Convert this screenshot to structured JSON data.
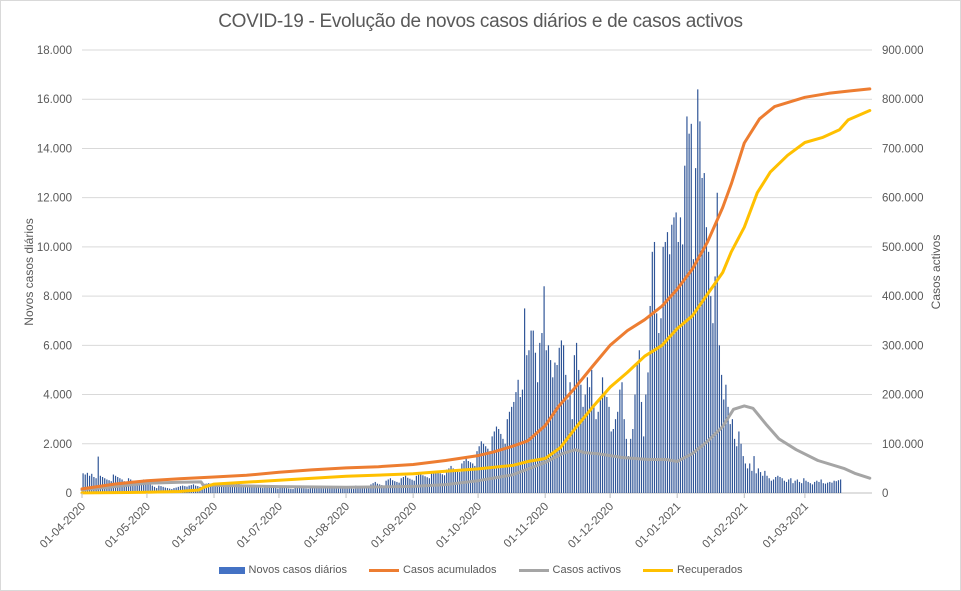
{
  "chart_data": {
    "type": "bar",
    "title": "COVID-19 - Evolução de novos casos diários e de casos activos",
    "xlabel": "",
    "ylabel": "Novos casos diários",
    "y2label": "Casos activos",
    "ylim": [
      0,
      18000
    ],
    "y2lim": [
      0,
      900000
    ],
    "yticks": [
      "0",
      "2.000",
      "4.000",
      "6.000",
      "8.000",
      "10.000",
      "12.000",
      "14.000",
      "16.000",
      "18.000"
    ],
    "y2ticks": [
      "0",
      "100.000",
      "200.000",
      "300.000",
      "400.000",
      "500.000",
      "600.000",
      "700.000",
      "800.000",
      "900.000"
    ],
    "x_range": [
      "2020-04-01",
      "2021-03-31"
    ],
    "xticks": [
      "01-04-2020",
      "01-05-2020",
      "01-06-2020",
      "01-07-2020",
      "01-08-2020",
      "01-09-2020",
      "01-10-2020",
      "01-11-2020",
      "01-12-2020",
      "01-01-2021",
      "01-02-2021",
      "01-03-2021"
    ],
    "xtick_days": [
      0,
      30,
      61,
      91,
      122,
      153,
      183,
      214,
      244,
      275,
      306,
      334
    ],
    "grid": true,
    "legend_position": "bottom",
    "colors": {
      "bars": "#4472c4",
      "bars_dark": "#2f5597",
      "acumulados": "#ed7d31",
      "activos": "#a5a5a5",
      "recuperados": "#ffc000",
      "grid": "#d9d9d9",
      "text": "#595959"
    },
    "series": [
      {
        "name": "Novos casos diários",
        "type": "bar",
        "axis": "left",
        "daily_values_by_week": [
          [
            800,
            750,
            820,
            700,
            780,
            650,
            600
          ],
          [
            1480,
            700,
            650,
            600,
            550,
            520,
            480
          ],
          [
            750,
            700,
            650,
            600,
            550,
            480,
            420
          ],
          [
            600,
            550,
            500,
            450,
            400,
            380,
            350
          ],
          [
            550,
            500,
            450,
            350,
            300,
            250,
            200
          ],
          [
            300,
            280,
            250,
            220,
            200,
            180,
            160
          ],
          [
            200,
            220,
            250,
            280,
            300,
            280,
            260
          ],
          [
            300,
            320,
            350,
            300,
            280,
            250,
            230
          ],
          [
            300,
            380,
            400,
            380,
            350,
            320,
            300
          ],
          [
            350,
            330,
            300,
            320,
            350,
            300,
            280
          ],
          [
            350,
            380,
            400,
            350,
            300,
            280,
            260
          ],
          [
            320,
            300,
            280,
            260,
            240,
            220,
            200
          ],
          [
            300,
            280,
            260,
            240,
            220,
            200,
            180
          ],
          [
            250,
            230,
            220,
            200,
            180,
            170,
            160
          ],
          [
            260,
            240,
            220,
            200,
            190,
            180,
            170
          ],
          [
            200,
            230,
            250,
            220,
            200,
            190,
            180
          ],
          [
            280,
            260,
            240,
            220,
            200,
            190,
            180
          ],
          [
            250,
            230,
            220,
            200,
            190,
            180,
            170
          ],
          [
            300,
            280,
            260,
            240,
            220,
            200,
            190
          ],
          [
            350,
            400,
            450,
            380,
            350,
            320,
            300
          ],
          [
            500,
            550,
            600,
            520,
            480,
            450,
            420
          ],
          [
            600,
            650,
            700,
            620,
            580,
            540,
            500
          ],
          [
            700,
            750,
            800,
            720,
            680,
            640,
            600
          ],
          [
            800,
            850,
            900,
            850,
            800,
            760,
            720
          ],
          [
            950,
            1000,
            1100,
            1000,
            950,
            900,
            850
          ],
          [
            1200,
            1300,
            1400,
            1300,
            1250,
            1200,
            1100
          ],
          [
            1700,
            1900,
            2100,
            2000,
            1900,
            1800,
            1700
          ],
          [
            2300,
            2500,
            2700,
            2600,
            2400,
            2200,
            2000
          ],
          [
            3000,
            3300,
            3500,
            3700,
            4100,
            4600,
            3900
          ],
          [
            4200,
            7500,
            5600,
            5800,
            6600,
            6600,
            5700
          ],
          [
            4500,
            6100,
            6500,
            8400,
            5800,
            6000,
            5400
          ],
          [
            4700,
            5300,
            5200,
            5900,
            6200,
            6000,
            4800
          ],
          [
            3800,
            4500,
            3000,
            5600,
            6100,
            5000,
            4400
          ],
          [
            3500,
            4000,
            4700,
            4300,
            5000,
            3500,
            3000
          ],
          [
            3300,
            3900,
            4700,
            4100,
            3900,
            3500,
            2500
          ],
          [
            2600,
            3000,
            3300,
            4200,
            4500,
            3000,
            2200
          ],
          [
            1500,
            2200,
            2600,
            4000,
            5200,
            5800,
            3700
          ],
          [
            2300,
            4000,
            4900,
            7600,
            9800,
            10200,
            7300
          ],
          [
            6500,
            7100,
            10000,
            10200,
            10600,
            9700,
            10900
          ],
          [
            11200,
            11400,
            10200,
            11200,
            10100,
            13300,
            15300
          ],
          [
            14600,
            15000,
            9500,
            13200,
            16400,
            15100,
            12800
          ],
          [
            13000,
            10800,
            9800,
            8000,
            6900,
            8800,
            12200
          ],
          [
            6000,
            4800,
            3800,
            4400,
            3500,
            2800,
            3000
          ],
          [
            2200,
            1900,
            2500,
            2000,
            1500,
            1200,
            1000
          ],
          [
            1200,
            900,
            1500,
            800,
            1000,
            850,
            700
          ],
          [
            900,
            700,
            600,
            500,
            550,
            650,
            700
          ],
          [
            650,
            600,
            500,
            450,
            550,
            600,
            400
          ],
          [
            500,
            550,
            450,
            400,
            600,
            500,
            450
          ],
          [
            400,
            350,
            450,
            500,
            450,
            550,
            400
          ],
          [
            380,
            420,
            450,
            420,
            500,
            480,
            520
          ],
          [
            550
          ]
        ]
      },
      {
        "name": "Casos acumulados",
        "type": "line",
        "axis": "right",
        "points": [
          [
            0,
            8250
          ],
          [
            15,
            18000
          ],
          [
            30,
            25000
          ],
          [
            45,
            29000
          ],
          [
            61,
            32500
          ],
          [
            76,
            36000
          ],
          [
            91,
            42100
          ],
          [
            106,
            47000
          ],
          [
            122,
            50900
          ],
          [
            137,
            53500
          ],
          [
            153,
            58000
          ],
          [
            168,
            66000
          ],
          [
            183,
            76000
          ],
          [
            190,
            83000
          ],
          [
            199,
            95000
          ],
          [
            206,
            106000
          ],
          [
            214,
            137000
          ],
          [
            220,
            175000
          ],
          [
            228,
            215000
          ],
          [
            236,
            258000
          ],
          [
            244,
            300000
          ],
          [
            252,
            330000
          ],
          [
            260,
            352000
          ],
          [
            268,
            380000
          ],
          [
            275,
            414000
          ],
          [
            282,
            455000
          ],
          [
            289,
            510000
          ],
          [
            296,
            580000
          ],
          [
            300,
            628000
          ],
          [
            306,
            711000
          ],
          [
            313,
            760000
          ],
          [
            320,
            785000
          ],
          [
            334,
            804000
          ],
          [
            345,
            812000
          ],
          [
            355,
            817000
          ],
          [
            364,
            821000
          ]
        ]
      },
      {
        "name": "Casos activos",
        "type": "line",
        "axis": "right",
        "points": [
          [
            0,
            6500
          ],
          [
            15,
            13000
          ],
          [
            30,
            20000
          ],
          [
            45,
            22000
          ],
          [
            55,
            22500
          ],
          [
            56,
            16000
          ],
          [
            61,
            15500
          ],
          [
            91,
            13000
          ],
          [
            122,
            11500
          ],
          [
            153,
            13500
          ],
          [
            168,
            17000
          ],
          [
            183,
            25000
          ],
          [
            199,
            37000
          ],
          [
            214,
            62000
          ],
          [
            222,
            80000
          ],
          [
            228,
            88000
          ],
          [
            232,
            82000
          ],
          [
            238,
            80000
          ],
          [
            250,
            72000
          ],
          [
            262,
            68000
          ],
          [
            270,
            68000
          ],
          [
            275,
            64000
          ],
          [
            282,
            80000
          ],
          [
            289,
            105000
          ],
          [
            296,
            135000
          ],
          [
            301,
            170000
          ],
          [
            306,
            177000
          ],
          [
            310,
            172000
          ],
          [
            316,
            140000
          ],
          [
            322,
            110000
          ],
          [
            330,
            88000
          ],
          [
            340,
            66000
          ],
          [
            352,
            50000
          ],
          [
            357,
            40000
          ],
          [
            364,
            30000
          ]
        ]
      },
      {
        "name": "Recuperados",
        "type": "line",
        "axis": "right",
        "points": [
          [
            0,
            150
          ],
          [
            30,
            1500
          ],
          [
            45,
            3000
          ],
          [
            54,
            6000
          ],
          [
            56,
            11000
          ],
          [
            61,
            18000
          ],
          [
            91,
            26000
          ],
          [
            122,
            34000
          ],
          [
            153,
            39000
          ],
          [
            168,
            44000
          ],
          [
            183,
            49000
          ],
          [
            199,
            56000
          ],
          [
            206,
            64000
          ],
          [
            214,
            70000
          ],
          [
            221,
            92000
          ],
          [
            228,
            132000
          ],
          [
            236,
            175000
          ],
          [
            244,
            215000
          ],
          [
            252,
            245000
          ],
          [
            260,
            278000
          ],
          [
            268,
            300000
          ],
          [
            275,
            334000
          ],
          [
            282,
            360000
          ],
          [
            289,
            404000
          ],
          [
            296,
            448000
          ],
          [
            300,
            490000
          ],
          [
            306,
            540000
          ],
          [
            312,
            610000
          ],
          [
            318,
            652000
          ],
          [
            326,
            686000
          ],
          [
            334,
            712000
          ],
          [
            342,
            722000
          ],
          [
            350,
            738000
          ],
          [
            354,
            758000
          ],
          [
            364,
            777000
          ]
        ]
      }
    ]
  },
  "legend": [
    {
      "label": "Novos casos diários",
      "kind": "bar",
      "color": "#4472c4"
    },
    {
      "label": "Casos acumulados",
      "kind": "line",
      "color": "#ed7d31"
    },
    {
      "label": "Casos activos",
      "kind": "line",
      "color": "#a5a5a5"
    },
    {
      "label": "Recuperados",
      "kind": "line",
      "color": "#ffc000"
    }
  ]
}
